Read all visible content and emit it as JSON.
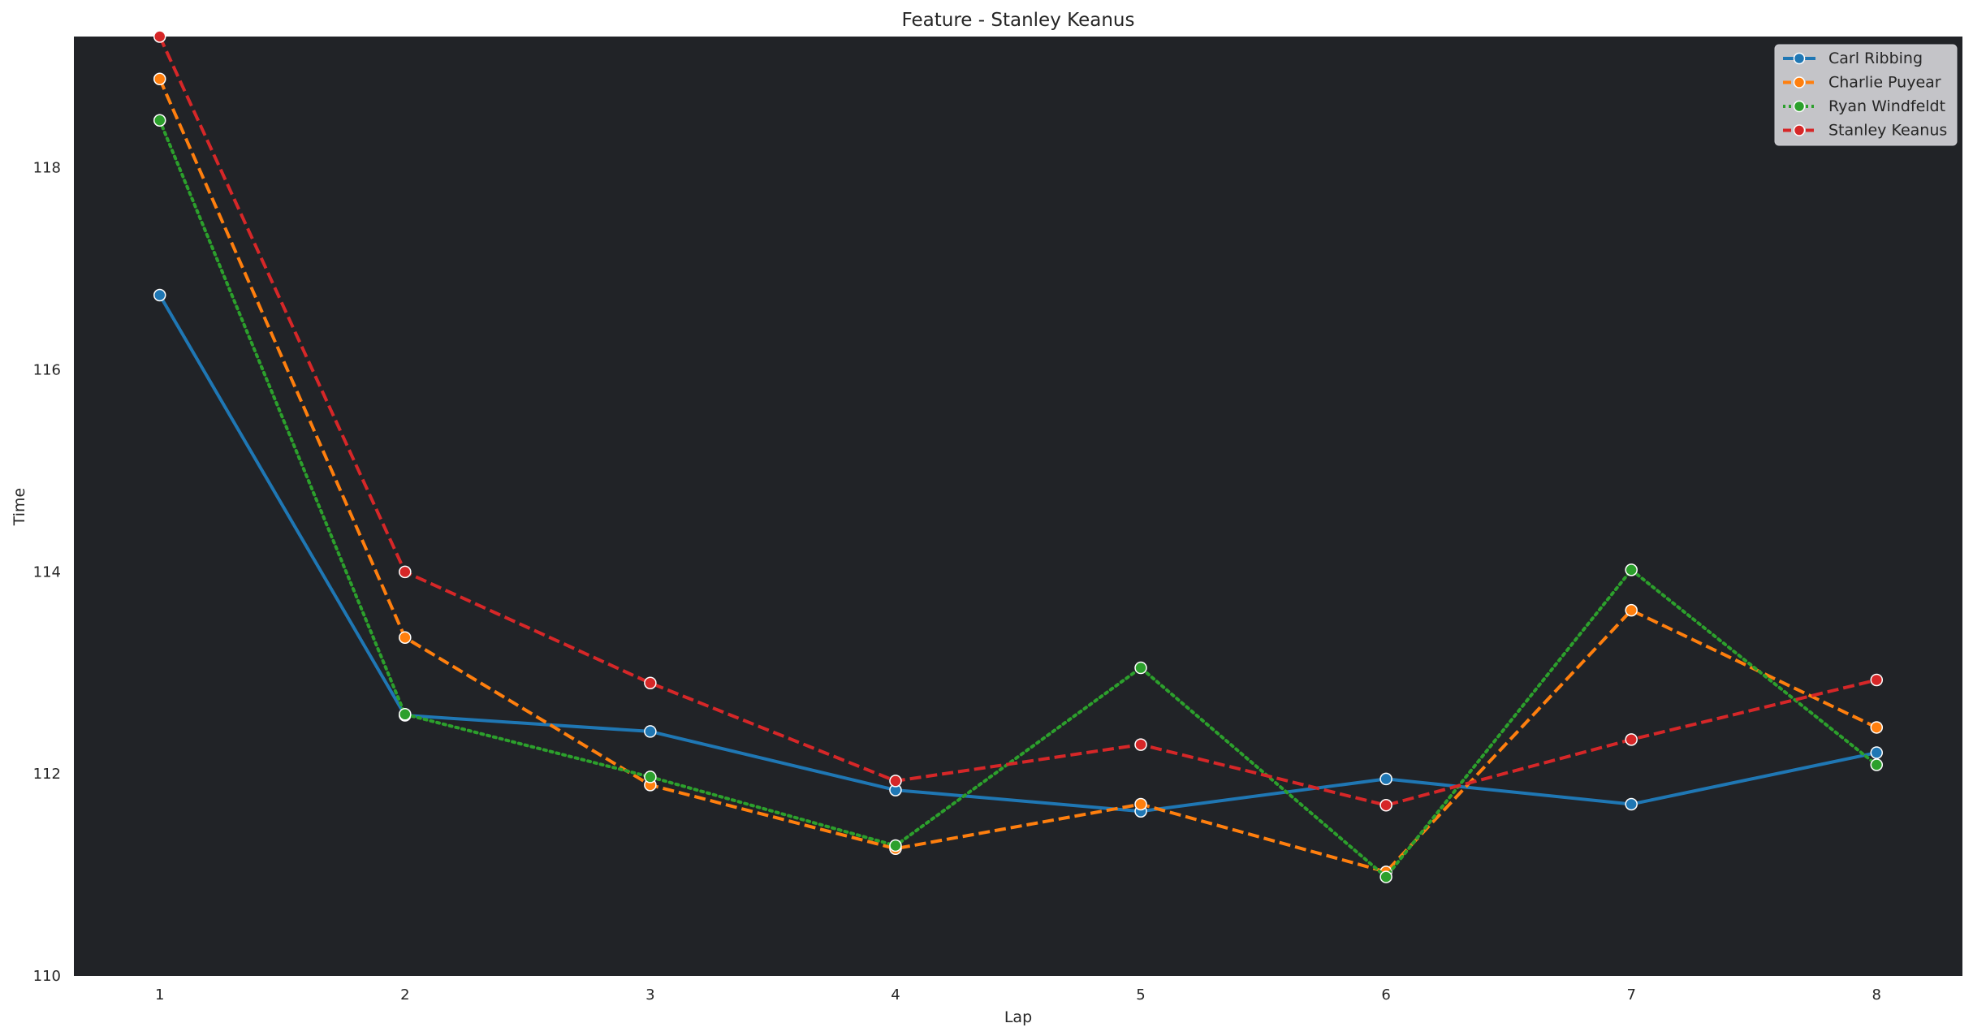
{
  "chart_data": {
    "type": "line",
    "title": "Feature - Stanley Keanus",
    "xlabel": "Lap",
    "ylabel": "Time",
    "x": [
      1,
      2,
      3,
      4,
      5,
      6,
      7,
      8
    ],
    "xlim": [
      0.65,
      8.35
    ],
    "ylim": [
      110,
      119.3
    ],
    "yticks": [
      110,
      112,
      114,
      116,
      118
    ],
    "grid": false,
    "plot_background": "#212327",
    "legend_position": "top-right",
    "series": [
      {
        "name": "Carl Ribbing",
        "color": "#1f77b4",
        "dash": "solid",
        "values": [
          116.74,
          112.58,
          112.42,
          111.84,
          111.63,
          111.95,
          111.7,
          112.21
        ]
      },
      {
        "name": "Charlie Puyear",
        "color": "#ff7f0e",
        "dash": "dashed",
        "values": [
          118.88,
          113.35,
          111.89,
          111.26,
          111.7,
          111.03,
          113.62,
          112.46
        ]
      },
      {
        "name": "Ryan Windfeldt",
        "color": "#2ca02c",
        "dash": "dotted",
        "values": [
          118.47,
          112.59,
          111.97,
          111.29,
          113.05,
          110.98,
          114.02,
          112.09
        ]
      },
      {
        "name": "Stanley Keanus",
        "color": "#d62728",
        "dash": "dashed",
        "values": [
          119.3,
          114.0,
          112.9,
          111.93,
          112.29,
          111.69,
          112.34,
          112.93
        ]
      }
    ]
  }
}
